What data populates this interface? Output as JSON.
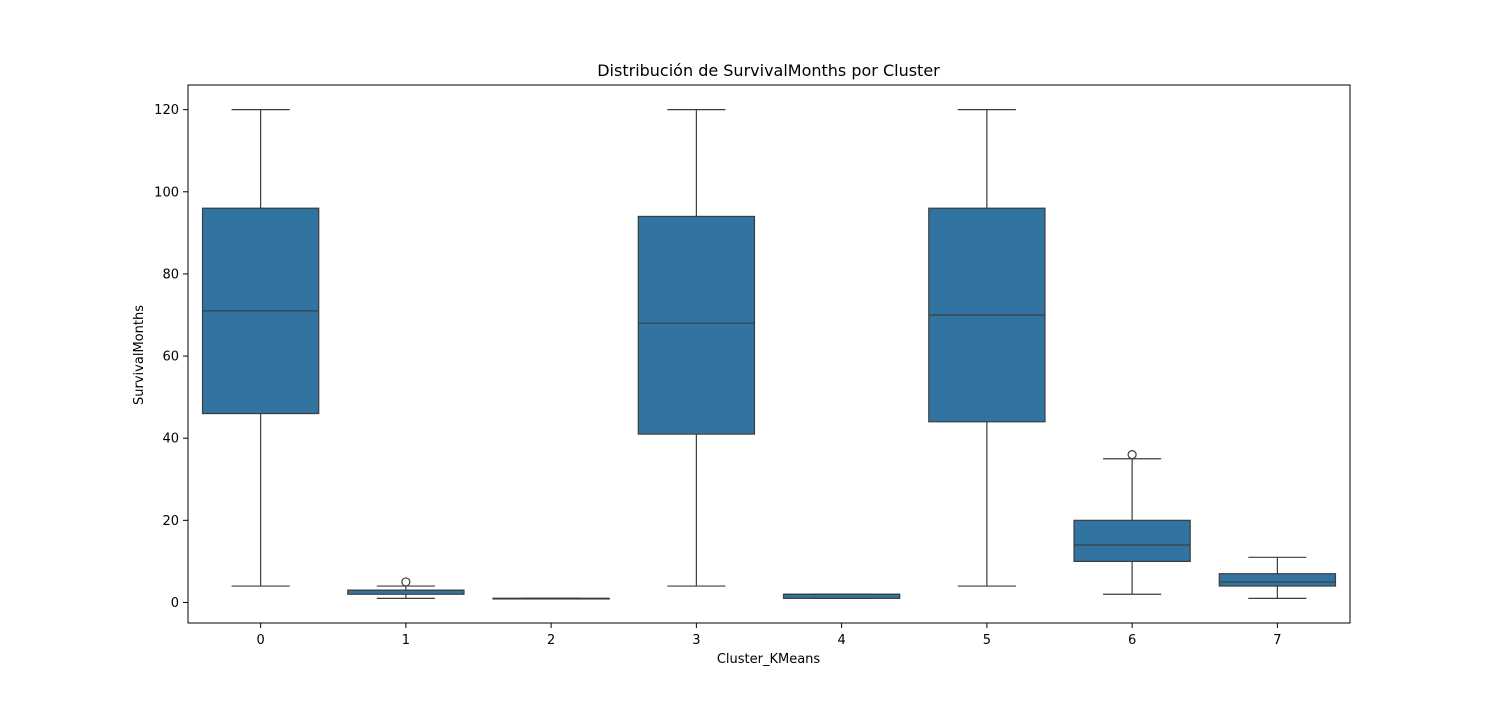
{
  "chart_data": {
    "type": "box",
    "title": "Distribución de SurvivalMonths por Cluster",
    "xlabel": "Cluster_KMeans",
    "ylabel": "SurvivalMonths",
    "ylim": [
      -5,
      126
    ],
    "yticks": [
      0,
      20,
      40,
      60,
      80,
      100,
      120
    ],
    "grid": false,
    "box_color": "#3274a1",
    "line_color": "#3d3d3d",
    "boxes": [
      {
        "category": "0",
        "whisker_low": 4,
        "q1": 46,
        "median": 71,
        "q3": 96,
        "whisker_high": 120,
        "outliers": []
      },
      {
        "category": "1",
        "whisker_low": 1,
        "q1": 2,
        "median": 3,
        "q3": 3,
        "whisker_high": 4,
        "outliers": [
          5
        ]
      },
      {
        "category": "2",
        "whisker_low": 1,
        "q1": 1,
        "median": 1,
        "q3": 1,
        "whisker_high": 1,
        "outliers": []
      },
      {
        "category": "3",
        "whisker_low": 4,
        "q1": 41,
        "median": 68,
        "q3": 94,
        "whisker_high": 120,
        "outliers": []
      },
      {
        "category": "4",
        "whisker_low": 1,
        "q1": 1,
        "median": 2,
        "q3": 2,
        "whisker_high": 2,
        "outliers": []
      },
      {
        "category": "5",
        "whisker_low": 4,
        "q1": 44,
        "median": 70,
        "q3": 96,
        "whisker_high": 120,
        "outliers": []
      },
      {
        "category": "6",
        "whisker_low": 2,
        "q1": 10,
        "median": 14,
        "q3": 20,
        "whisker_high": 35,
        "outliers": [
          36
        ]
      },
      {
        "category": "7",
        "whisker_low": 1,
        "q1": 4,
        "median": 5,
        "q3": 7,
        "whisker_high": 11,
        "outliers": []
      }
    ]
  }
}
